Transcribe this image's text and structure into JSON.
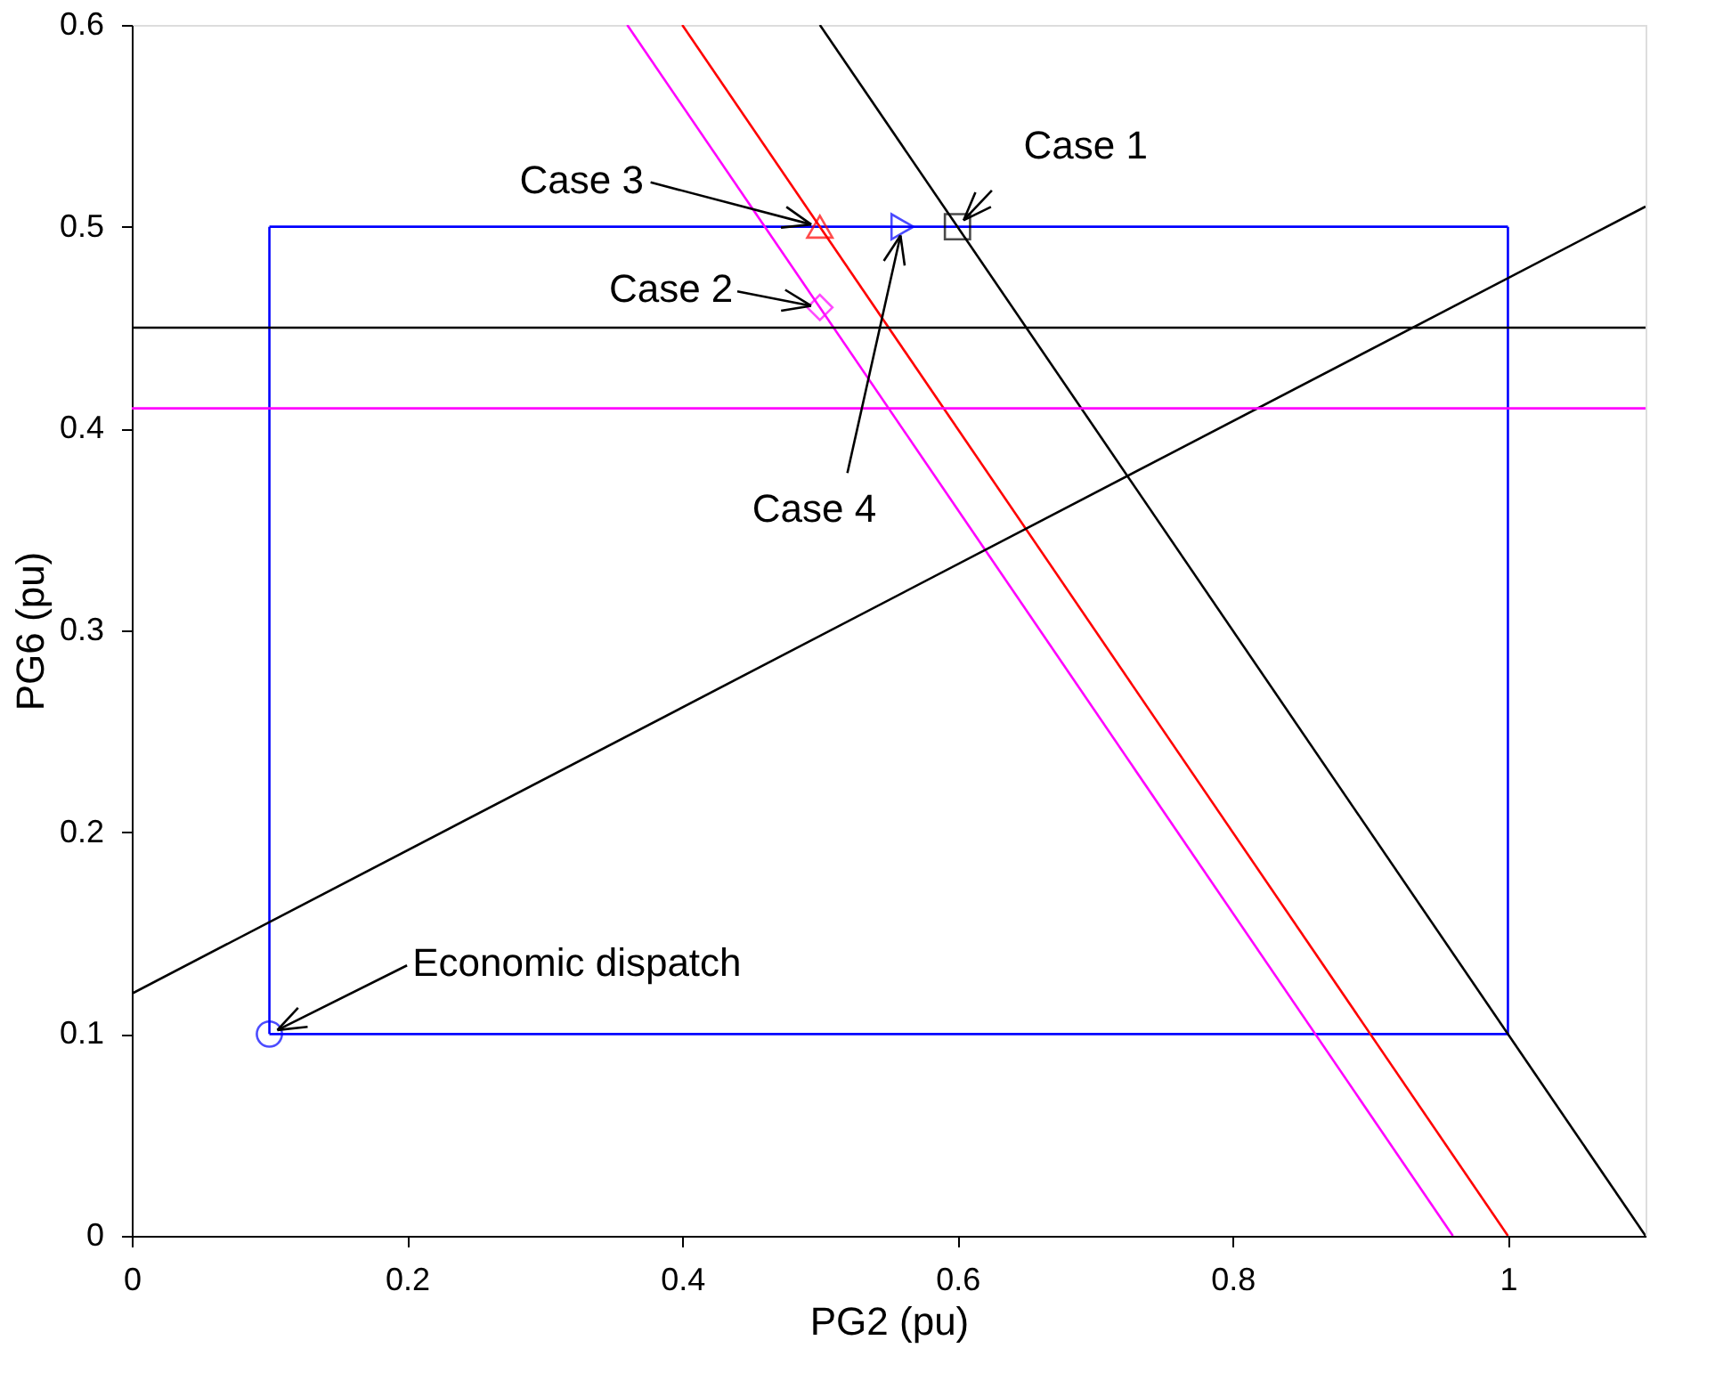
{
  "chart_data": {
    "type": "line",
    "xlabel": "PG2 (pu)",
    "ylabel": "PG6 (pu)",
    "xlim": [
      0,
      1.1
    ],
    "ylim": [
      0,
      0.6
    ],
    "xticks": [
      0,
      0.2,
      0.4,
      0.6,
      0.8,
      1
    ],
    "yticks": [
      0,
      0.1,
      0.2,
      0.3,
      0.4,
      0.5,
      0.6
    ],
    "grid": false,
    "line_style": "solid",
    "series": [
      {
        "color": "#0000ff",
        "x": [
          0.1,
          1
        ],
        "values": [
          0.1,
          0.1
        ]
      },
      {
        "color": "#0000ff",
        "x": [
          0.1,
          1
        ],
        "values": [
          0.5,
          0.5
        ]
      },
      {
        "color": "#0000ff",
        "x": [
          0.1,
          0.1
        ],
        "values": [
          0.1,
          0.5
        ]
      },
      {
        "color": "#0000ff",
        "x": [
          1,
          1
        ],
        "values": [
          0.1,
          0.5
        ]
      },
      {
        "color": "#000000",
        "x": [
          0.5,
          1.1
        ],
        "values": [
          0.6,
          0
        ]
      },
      {
        "color": "#ff0000",
        "x": [
          0.4,
          1
        ],
        "values": [
          0.6,
          0
        ]
      },
      {
        "color": "#ff00ff",
        "x": [
          0.36,
          0.96
        ],
        "values": [
          0.6,
          0
        ]
      },
      {
        "color": "#000000",
        "x": [
          0,
          1.1
        ],
        "values": [
          0.12,
          0.51
        ]
      },
      {
        "color": "#000000",
        "x": [
          0,
          1.1
        ],
        "values": [
          0.45,
          0.45
        ]
      },
      {
        "color": "#ff00ff",
        "x": [
          0,
          1.1
        ],
        "values": [
          0.41,
          0.41
        ]
      },
      {
        "type": "scatter",
        "marker": "circle",
        "color": "#0000ff",
        "x": [
          0.1
        ],
        "values": [
          0.1
        ]
      },
      {
        "type": "scatter",
        "marker": "square",
        "color": "#000000",
        "x": [
          0.6
        ],
        "values": [
          0.5
        ]
      },
      {
        "type": "scatter",
        "marker": "triangle",
        "color": "#ff0000",
        "x": [
          0.5
        ],
        "values": [
          0.5
        ]
      },
      {
        "type": "scatter",
        "marker": "diamond",
        "color": "#ff00ff",
        "x": [
          0.5
        ],
        "values": [
          0.46
        ]
      },
      {
        "type": "scatter",
        "marker": "triangle-right",
        "color": "#0000ff",
        "x": [
          0.56
        ],
        "values": [
          0.5
        ]
      }
    ],
    "annotations": [
      {
        "text": "Case 1",
        "x": 0.6,
        "y": 0.5
      },
      {
        "text": "Case 3",
        "x": 0.5,
        "y": 0.5
      },
      {
        "text": "Case 2",
        "x": 0.5,
        "y": 0.46
      },
      {
        "text": "Case 4",
        "x": 0.56,
        "y": 0.5
      },
      {
        "text": "Economic dispatch",
        "x": 0.1,
        "y": 0.1
      }
    ]
  }
}
